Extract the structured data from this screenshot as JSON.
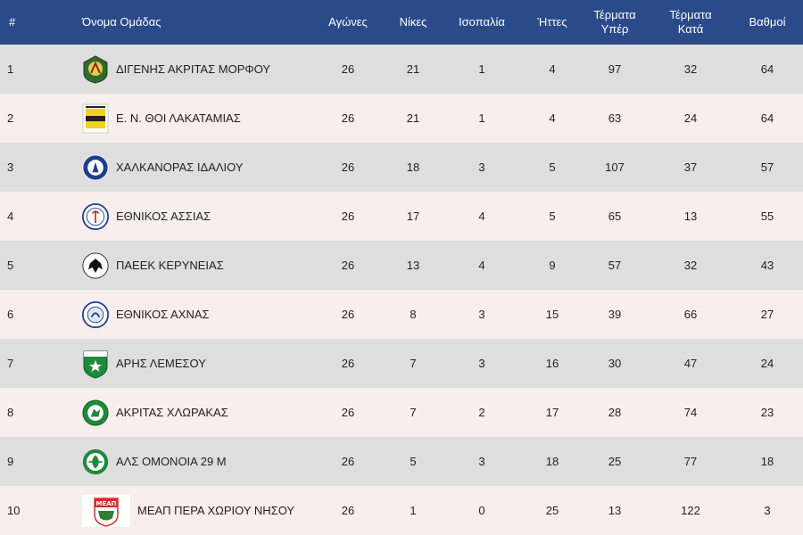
{
  "header": {
    "rank": "#",
    "team": "Όνομα Ομάδας",
    "played": "Αγώνες",
    "wins": "Νίκες",
    "draws": "Ισοπαλία",
    "losses": "Ήττες",
    "goals_for_line1": "Τέρματα",
    "goals_for_line2": "Υπέρ",
    "goals_against_line1": "Τέρματα",
    "goals_against_line2": "Κατά",
    "points": "Βαθμοί"
  },
  "colors": {
    "header_bg": "#2a4a8a",
    "row_odd": "#dedede",
    "row_even": "#f8eeee"
  },
  "rows": [
    {
      "rank": "1",
      "team": "ΔΙΓΕΝΗΣ ΑΚΡΙΤΑΣ ΜΟΡΦΟΥ",
      "logo": "digenis-logo-icon",
      "played": "26",
      "wins": "21",
      "draws": "1",
      "losses": "4",
      "gf": "97",
      "ga": "32",
      "pts": "64"
    },
    {
      "rank": "2",
      "team": "Ε. Ν. ΘΟΙ ΛΑΚΑΤΑΜΙΑΣ",
      "logo": "thoi-logo-icon",
      "played": "26",
      "wins": "21",
      "draws": "1",
      "losses": "4",
      "gf": "63",
      "ga": "24",
      "pts": "64"
    },
    {
      "rank": "3",
      "team": "ΧΑΛΚΑΝΟΡΑΣ ΙΔΑΛΙΟΥ",
      "logo": "chalkanoras-logo-icon",
      "played": "26",
      "wins": "18",
      "draws": "3",
      "losses": "5",
      "gf": "107",
      "ga": "37",
      "pts": "57"
    },
    {
      "rank": "4",
      "team": "ΕΘΝΙΚΟΣ ΑΣΣΙΑΣ",
      "logo": "ethnikos-assias-logo-icon",
      "played": "26",
      "wins": "17",
      "draws": "4",
      "losses": "5",
      "gf": "65",
      "ga": "13",
      "pts": "55"
    },
    {
      "rank": "5",
      "team": "ΠΑΕΕΚ ΚΕΡΥΝΕΙΑΣ",
      "logo": "paeek-logo-icon",
      "played": "26",
      "wins": "13",
      "draws": "4",
      "losses": "9",
      "gf": "57",
      "ga": "32",
      "pts": "43"
    },
    {
      "rank": "6",
      "team": "ΕΘΝΙΚΟΣ ΑΧΝΑΣ",
      "logo": "ethnikos-achnas-logo-icon",
      "played": "26",
      "wins": "8",
      "draws": "3",
      "losses": "15",
      "gf": "39",
      "ga": "66",
      "pts": "27"
    },
    {
      "rank": "7",
      "team": "ΑΡΗΣ ΛΕΜΕΣΟΥ",
      "logo": "aris-logo-icon",
      "played": "26",
      "wins": "7",
      "draws": "3",
      "losses": "16",
      "gf": "30",
      "ga": "47",
      "pts": "24"
    },
    {
      "rank": "8",
      "team": "ΑΚΡΙΤΑΣ ΧΛΩΡΑΚΑΣ",
      "logo": "akritas-logo-icon",
      "played": "26",
      "wins": "7",
      "draws": "2",
      "losses": "17",
      "gf": "28",
      "ga": "74",
      "pts": "23"
    },
    {
      "rank": "9",
      "team": "ΑΛΣ ΟΜΟΝΟΙΑ 29 Μ",
      "logo": "omonoia-logo-icon",
      "played": "26",
      "wins": "5",
      "draws": "3",
      "losses": "18",
      "gf": "25",
      "ga": "77",
      "pts": "18"
    },
    {
      "rank": "10",
      "team": "ΜΕΑΠ ΠΕΡΑ ΧΩΡΙΟΥ ΝΗΣΟΥ",
      "logo": "meap-logo-icon",
      "logo_text": "ΜΕΑΠ",
      "played": "26",
      "wins": "1",
      "draws": "0",
      "losses": "25",
      "gf": "13",
      "ga": "122",
      "pts": "3"
    }
  ]
}
